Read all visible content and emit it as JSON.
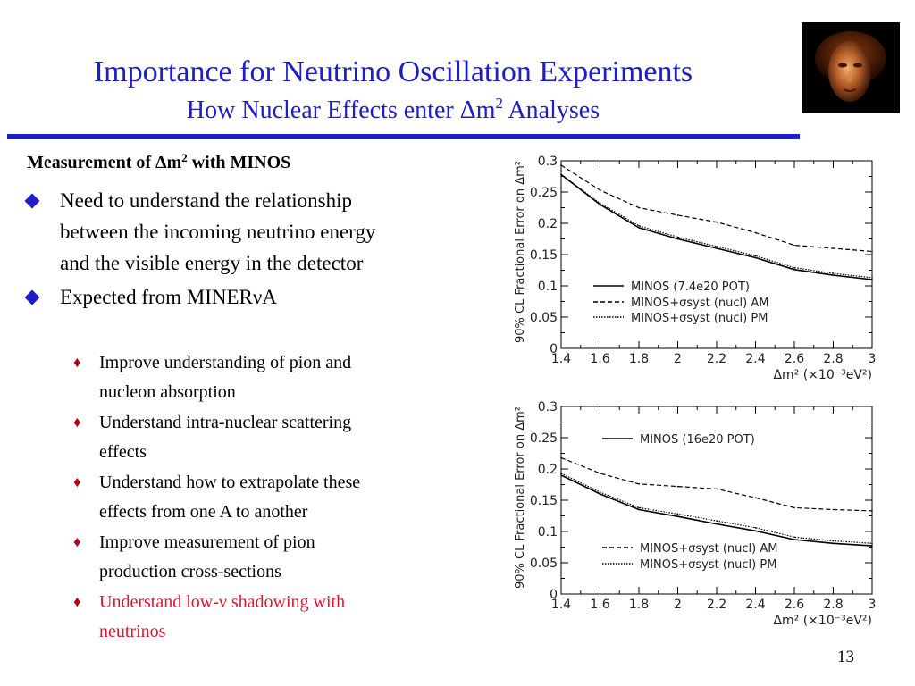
{
  "slide": {
    "title": "Importance for Neutrino Oscillation Experiments",
    "subtitle": "How Nuclear Effects enter Δm² Analyses",
    "page_number": "13"
  },
  "content": {
    "subheading": "Measurement of Δm² with MINOS",
    "bullets": [
      {
        "lines": [
          "Need to understand the relationship",
          "between the incoming neutrino energy",
          "and the visible energy in the detector"
        ]
      },
      {
        "lines": [
          "Expected from MINERνA"
        ]
      }
    ],
    "subbullets": [
      {
        "lines": [
          "Improve understanding of pion and",
          "nucleon absorption"
        ],
        "color": "#000000"
      },
      {
        "lines": [
          "Understand intra-nuclear scattering",
          "effects"
        ],
        "color": "#000000"
      },
      {
        "lines": [
          "Understand how to extrapolate these",
          "effects from one A to another"
        ],
        "color": "#000000"
      },
      {
        "lines": [
          "Improve measurement of pion",
          "production cross-sections"
        ],
        "color": "#000000"
      },
      {
        "lines": [
          "Understand low-ν shadowing with",
          "neutrinos"
        ],
        "color": "#e01432"
      }
    ]
  },
  "colors": {
    "title": "#1e1ec8",
    "bullet": "#1e1ec8",
    "subbullet": "#b4001e",
    "highlight": "#e01432"
  },
  "logo": {
    "icon": "bronze-head-photo"
  },
  "chart_data": [
    {
      "type": "line",
      "xlabel": "Δm² (×10⁻³eV²)",
      "ylabel": "90% CL Fractional Error on Δm²",
      "xlim": [
        1.4,
        3.0
      ],
      "ylim": [
        0,
        0.3
      ],
      "xticks": [
        "1.4",
        "1.6",
        "1.8",
        "2",
        "2.2",
        "2.4",
        "2.6",
        "2.8",
        "3"
      ],
      "yticks": [
        "0",
        "0.05",
        "0.1",
        "0.15",
        "0.2",
        "0.25",
        "0.3"
      ],
      "x": [
        1.4,
        1.6,
        1.8,
        2.0,
        2.2,
        2.4,
        2.6,
        2.8,
        3.0
      ],
      "series": [
        {
          "name": "MINOS (7.4e20 POT)",
          "style": "solid",
          "values": [
            0.278,
            0.23,
            0.193,
            0.175,
            0.16,
            0.145,
            0.126,
            0.117,
            0.11
          ]
        },
        {
          "name": "MINOS+σsyst (nucl) AM",
          "style": "dashed",
          "values": [
            0.293,
            0.253,
            0.225,
            0.213,
            0.202,
            0.185,
            0.165,
            0.16,
            0.155
          ]
        },
        {
          "name": "MINOS+σsyst (nucl) PM",
          "style": "dotted",
          "values": [
            0.278,
            0.232,
            0.196,
            0.178,
            0.163,
            0.148,
            0.129,
            0.12,
            0.113
          ]
        }
      ]
    },
    {
      "type": "line",
      "xlabel": "Δm² (×10⁻³eV²)",
      "ylabel": "90% CL Fractional Error on Δm²",
      "xlim": [
        1.4,
        3.0
      ],
      "ylim": [
        0,
        0.3
      ],
      "xticks": [
        "1.4",
        "1.6",
        "1.8",
        "2",
        "2.2",
        "2.4",
        "2.6",
        "2.8",
        "3"
      ],
      "yticks": [
        "0",
        "0.05",
        "0.1",
        "0.15",
        "0.2",
        "0.25",
        "0.3"
      ],
      "x": [
        1.4,
        1.6,
        1.8,
        2.0,
        2.2,
        2.4,
        2.6,
        2.8,
        3.0
      ],
      "series": [
        {
          "name": "MINOS (16e20 POT)",
          "style": "solid",
          "values": [
            0.19,
            0.16,
            0.135,
            0.124,
            0.112,
            0.101,
            0.087,
            0.081,
            0.077
          ]
        },
        {
          "name": "MINOS+σsyst (nucl) AM",
          "style": "dashed",
          "values": [
            0.218,
            0.193,
            0.176,
            0.172,
            0.168,
            0.154,
            0.138,
            0.135,
            0.133
          ]
        },
        {
          "name": "MINOS+σsyst (nucl) PM",
          "style": "dotted",
          "values": [
            0.193,
            0.163,
            0.138,
            0.128,
            0.117,
            0.106,
            0.091,
            0.085,
            0.081
          ]
        }
      ]
    }
  ]
}
